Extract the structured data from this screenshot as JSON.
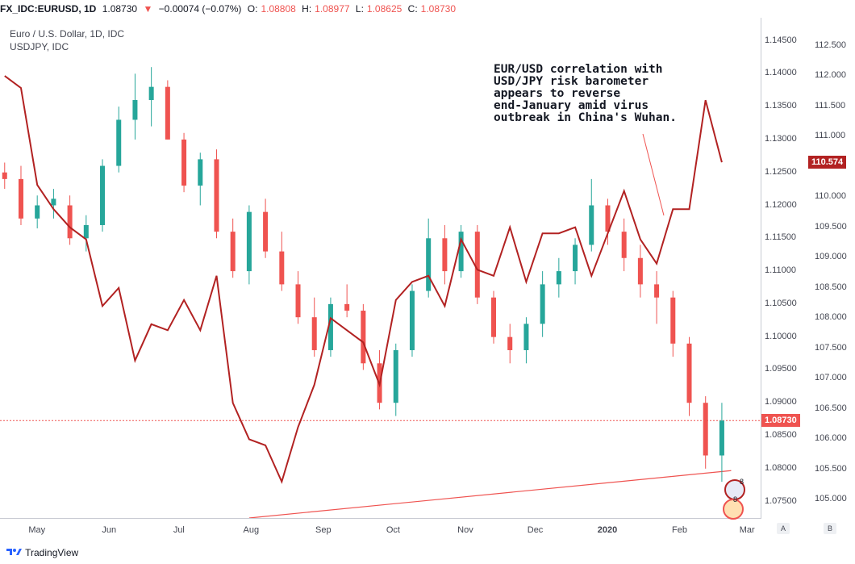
{
  "header": {
    "symbol": "FX_IDC:EURUSD, 1D",
    "last": "1.08730",
    "change": "−0.00074 (−0.07%)",
    "o_label": "O:",
    "o": "1.08808",
    "h_label": "H:",
    "h": "1.08977",
    "l_label": "L:",
    "l": "1.08625",
    "c_label": "C:",
    "c": "1.08730"
  },
  "legend": {
    "main": "Euro / U.S. Dollar, 1D, IDC",
    "overlay": "USDJPY, IDC"
  },
  "annotation": "EUR/USD correlation with\nUSD/JPY risk barometer\nappears to reverse\nend-January amid virus\noutbreak in China's Wuhan.",
  "axis_eurusd": [
    "1.14500",
    "1.14000",
    "1.13500",
    "1.13000",
    "1.12500",
    "1.12000",
    "1.11500",
    "1.11000",
    "1.10500",
    "1.10000",
    "1.09500",
    "1.09000",
    "1.08500",
    "1.08000",
    "1.07500"
  ],
  "axis_usdjpy": [
    "112.500",
    "112.000",
    "111.500",
    "111.000",
    "110.000",
    "109.500",
    "109.000",
    "108.500",
    "108.000",
    "107.500",
    "107.000",
    "106.500",
    "106.000",
    "105.500",
    "105.000"
  ],
  "price_tag_eurusd": "1.08730",
  "price_tag_usdjpy": "110.574",
  "x_labels": [
    "May",
    "Jun",
    "Jul",
    "Aug",
    "Sep",
    "Oct",
    "Nov",
    "Dec",
    "2020",
    "Feb",
    "Mar"
  ],
  "buttons": {
    "a": "A",
    "b": "B"
  },
  "footer": {
    "brand": "TradingView"
  },
  "badges": [
    "8",
    "8"
  ],
  "colors": {
    "up": "#26a69a",
    "down": "#ef5350",
    "overlay": "#b22222",
    "trend": "#ef5350"
  },
  "chart_data": {
    "type": "line",
    "ylim_eurusd": [
      1.0725,
      1.1485
    ],
    "ylim_usdjpy": [
      104.7,
      112.96
    ],
    "last_price_line": 1.0873,
    "series": [
      {
        "name": "Euro / U.S. Dollar, 1D, IDC",
        "kind": "candlestick",
        "points": [
          [
            "2019-04-22",
            1.125,
            1.1265,
            1.1225,
            1.124
          ],
          [
            "2019-04-29",
            1.124,
            1.126,
            1.117,
            1.118
          ],
          [
            "2019-05-06",
            1.118,
            1.1215,
            1.1165,
            1.12
          ],
          [
            "2019-05-13",
            1.12,
            1.1225,
            1.118,
            1.121
          ],
          [
            "2019-05-20",
            1.12,
            1.1215,
            1.114,
            1.115
          ],
          [
            "2019-05-27",
            1.115,
            1.1185,
            1.113,
            1.117
          ],
          [
            "2019-06-03",
            1.117,
            1.127,
            1.116,
            1.126
          ],
          [
            "2019-06-10",
            1.126,
            1.135,
            1.125,
            1.133
          ],
          [
            "2019-06-17",
            1.133,
            1.14,
            1.13,
            1.136
          ],
          [
            "2019-06-24",
            1.136,
            1.141,
            1.132,
            1.138
          ],
          [
            "2019-07-01",
            1.138,
            1.139,
            1.13,
            1.13
          ],
          [
            "2019-07-08",
            1.13,
            1.131,
            1.122,
            1.123
          ],
          [
            "2019-07-15",
            1.123,
            1.128,
            1.12,
            1.127
          ],
          [
            "2019-07-22",
            1.127,
            1.1285,
            1.115,
            1.116
          ],
          [
            "2019-07-29",
            1.116,
            1.118,
            1.109,
            1.11
          ],
          [
            "2019-08-05",
            1.11,
            1.12,
            1.108,
            1.119
          ],
          [
            "2019-08-12",
            1.119,
            1.121,
            1.112,
            1.113
          ],
          [
            "2019-08-19",
            1.113,
            1.116,
            1.107,
            1.108
          ],
          [
            "2019-08-26",
            1.108,
            1.11,
            1.102,
            1.103
          ],
          [
            "2019-09-02",
            1.103,
            1.106,
            1.097,
            1.098
          ],
          [
            "2019-09-09",
            1.098,
            1.106,
            1.097,
            1.105
          ],
          [
            "2019-09-16",
            1.105,
            1.108,
            1.103,
            1.104
          ],
          [
            "2019-09-23",
            1.104,
            1.105,
            1.095,
            1.096
          ],
          [
            "2019-09-30",
            1.096,
            1.098,
            1.089,
            1.09
          ],
          [
            "2019-10-07",
            1.09,
            1.099,
            1.088,
            1.098
          ],
          [
            "2019-10-14",
            1.098,
            1.108,
            1.097,
            1.107
          ],
          [
            "2019-10-21",
            1.107,
            1.118,
            1.106,
            1.115
          ],
          [
            "2019-10-28",
            1.115,
            1.117,
            1.108,
            1.11
          ],
          [
            "2019-11-04",
            1.11,
            1.117,
            1.109,
            1.116
          ],
          [
            "2019-11-11",
            1.116,
            1.117,
            1.105,
            1.106
          ],
          [
            "2019-11-18",
            1.106,
            1.107,
            1.099,
            1.1
          ],
          [
            "2019-11-25",
            1.1,
            1.102,
            1.096,
            1.098
          ],
          [
            "2019-12-02",
            1.098,
            1.103,
            1.096,
            1.102
          ],
          [
            "2019-12-09",
            1.102,
            1.11,
            1.1,
            1.108
          ],
          [
            "2019-12-16",
            1.108,
            1.112,
            1.106,
            1.11
          ],
          [
            "2019-12-23",
            1.11,
            1.115,
            1.108,
            1.114
          ],
          [
            "2019-12-30",
            1.114,
            1.124,
            1.113,
            1.12
          ],
          [
            "2020-01-06",
            1.12,
            1.121,
            1.114,
            1.116
          ],
          [
            "2020-01-13",
            1.116,
            1.118,
            1.11,
            1.112
          ],
          [
            "2020-01-20",
            1.112,
            1.114,
            1.106,
            1.108
          ],
          [
            "2020-01-27",
            1.108,
            1.11,
            1.102,
            1.106
          ],
          [
            "2020-02-03",
            1.106,
            1.107,
            1.097,
            1.099
          ],
          [
            "2020-02-10",
            1.099,
            1.1,
            1.088,
            1.09
          ],
          [
            "2020-02-17",
            1.09,
            1.091,
            1.08,
            1.082
          ],
          [
            "2020-02-24",
            1.082,
            1.09,
            1.078,
            1.0873
          ]
        ]
      },
      {
        "name": "USDJPY, IDC",
        "kind": "line",
        "points": [
          [
            "2019-04-22",
            112.0
          ],
          [
            "2019-04-29",
            111.8
          ],
          [
            "2019-05-06",
            110.2
          ],
          [
            "2019-05-13",
            109.8
          ],
          [
            "2019-05-20",
            109.5
          ],
          [
            "2019-05-27",
            109.3
          ],
          [
            "2019-06-03",
            108.2
          ],
          [
            "2019-06-10",
            108.5
          ],
          [
            "2019-06-17",
            107.3
          ],
          [
            "2019-06-24",
            107.9
          ],
          [
            "2019-07-01",
            107.8
          ],
          [
            "2019-07-08",
            108.3
          ],
          [
            "2019-07-15",
            107.8
          ],
          [
            "2019-07-22",
            108.7
          ],
          [
            "2019-07-29",
            106.6
          ],
          [
            "2019-08-05",
            106.0
          ],
          [
            "2019-08-12",
            105.9
          ],
          [
            "2019-08-19",
            105.3
          ],
          [
            "2019-08-26",
            106.2
          ],
          [
            "2019-09-02",
            106.9
          ],
          [
            "2019-09-09",
            108.0
          ],
          [
            "2019-09-16",
            107.8
          ],
          [
            "2019-09-23",
            107.6
          ],
          [
            "2019-09-30",
            106.9
          ],
          [
            "2019-10-07",
            108.3
          ],
          [
            "2019-10-14",
            108.6
          ],
          [
            "2019-10-21",
            108.7
          ],
          [
            "2019-10-28",
            108.2
          ],
          [
            "2019-11-04",
            109.3
          ],
          [
            "2019-11-11",
            108.8
          ],
          [
            "2019-11-18",
            108.7
          ],
          [
            "2019-11-25",
            109.5
          ],
          [
            "2019-12-02",
            108.6
          ],
          [
            "2019-12-09",
            109.4
          ],
          [
            "2019-12-16",
            109.4
          ],
          [
            "2019-12-23",
            109.5
          ],
          [
            "2019-12-30",
            108.7
          ],
          [
            "2020-01-06",
            109.4
          ],
          [
            "2020-01-13",
            110.1
          ],
          [
            "2020-01-20",
            109.3
          ],
          [
            "2020-01-27",
            108.9
          ],
          [
            "2020-02-03",
            109.8
          ],
          [
            "2020-02-10",
            109.8
          ],
          [
            "2020-02-17",
            111.6
          ],
          [
            "2020-02-24",
            110.574
          ]
        ]
      }
    ],
    "trendline": [
      [
        "2019-08-05",
        1.0725
      ],
      [
        "2020-02-28",
        1.0797
      ]
    ]
  }
}
